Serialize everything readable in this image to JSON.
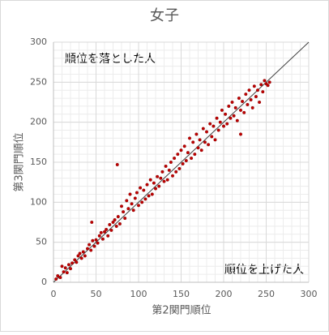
{
  "chart_data": {
    "type": "scatter",
    "title": "女子",
    "x_label": "第2関門順位",
    "y_label": "第3関門順位",
    "annotations": [
      "順位を落とした人",
      "順位を上げた人"
    ],
    "xlim": [
      0,
      300
    ],
    "ylim": [
      0,
      300
    ],
    "xticks": [
      0,
      50,
      100,
      150,
      200,
      250,
      300
    ],
    "yticks": [
      0,
      50,
      100,
      150,
      200,
      250,
      300
    ],
    "grid": true,
    "minor_grid_step": 10,
    "color": "#c00000",
    "diagonal_line": {
      "x": [
        0,
        300
      ],
      "y": [
        0,
        300
      ],
      "color": "#404040"
    },
    "series": [
      {
        "name": "女子",
        "x": [
          3,
          5,
          8,
          10,
          12,
          14,
          16,
          18,
          20,
          22,
          25,
          27,
          29,
          31,
          33,
          35,
          37,
          40,
          42,
          44,
          46,
          48,
          50,
          52,
          54,
          56,
          58,
          60,
          62,
          64,
          66,
          68,
          70,
          72,
          74,
          76,
          78,
          80,
          82,
          84,
          86,
          88,
          90,
          92,
          94,
          96,
          98,
          100,
          102,
          104,
          106,
          108,
          110,
          112,
          114,
          116,
          118,
          120,
          122,
          124,
          126,
          128,
          130,
          132,
          134,
          136,
          138,
          140,
          142,
          144,
          146,
          148,
          150,
          152,
          154,
          156,
          158,
          160,
          162,
          164,
          166,
          168,
          170,
          172,
          174,
          176,
          178,
          180,
          182,
          184,
          186,
          188,
          190,
          192,
          194,
          196,
          198,
          200,
          202,
          204,
          206,
          208,
          210,
          212,
          214,
          216,
          218,
          220,
          222,
          224,
          226,
          228,
          230,
          232,
          234,
          236,
          238,
          240,
          242,
          244,
          246,
          248,
          250,
          252,
          254,
          75,
          45,
          220
        ],
        "values": [
          4,
          8,
          6,
          20,
          13,
          18,
          12,
          22,
          17,
          24,
          28,
          25,
          33,
          36,
          30,
          38,
          33,
          42,
          47,
          40,
          52,
          45,
          53,
          49,
          58,
          62,
          54,
          63,
          66,
          58,
          72,
          65,
          75,
          78,
          70,
          82,
          73,
          95,
          88,
          80,
          102,
          92,
          110,
          98,
          90,
          105,
          112,
          96,
          118,
          100,
          115,
          104,
          122,
          108,
          128,
          110,
          124,
          117,
          132,
          120,
          130,
          138,
          126,
          145,
          128,
          140,
          150,
          133,
          155,
          138,
          160,
          142,
          165,
          148,
          170,
          152,
          162,
          180,
          155,
          175,
          160,
          185,
          168,
          178,
          165,
          192,
          175,
          188,
          172,
          198,
          182,
          195,
          178,
          205,
          190,
          200,
          215,
          195,
          210,
          198,
          220,
          205,
          225,
          208,
          218,
          202,
          230,
          215,
          226,
          212,
          235,
          222,
          240,
          228,
          218,
          245,
          232,
          240,
          225,
          247,
          238,
          252,
          248,
          246,
          250,
          147,
          75,
          185
        ]
      }
    ]
  }
}
